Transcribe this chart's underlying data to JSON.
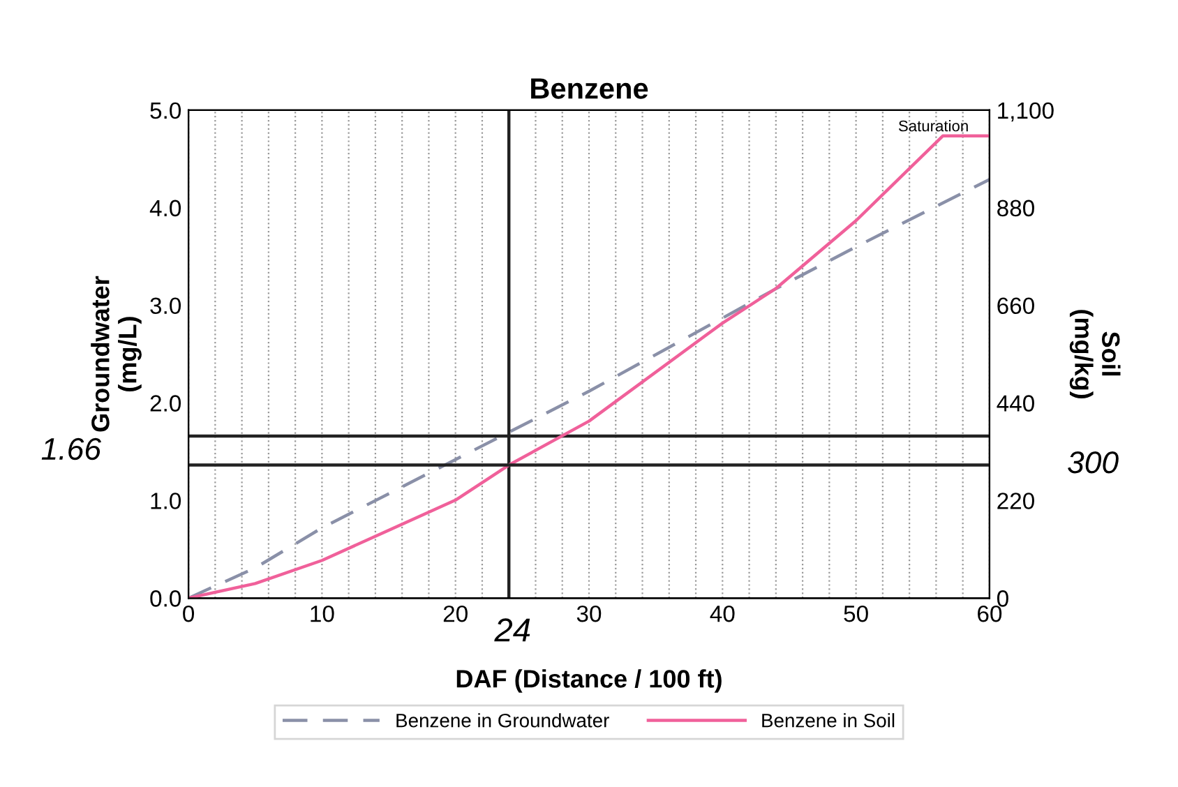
{
  "chart_data": {
    "type": "line",
    "title": "Benzene",
    "xlabel": "DAF (Distance / 100 ft)",
    "ylabel": "Groundwater\n(mg/L)",
    "y2label": "Soil\n(mg/kg)",
    "xlim": [
      0,
      60
    ],
    "xticks": [
      0,
      {
        "value": 2,
        "label": null
      },
      {
        "value": 4,
        "label": null
      },
      {
        "value": 6,
        "label": null
      },
      {
        "value": 8,
        "label": null
      },
      10,
      {
        "value": 12,
        "label": null
      },
      {
        "value": 14,
        "label": null
      },
      {
        "value": 16,
        "label": null
      },
      {
        "value": 18,
        "label": null
      },
      20,
      {
        "value": 22,
        "label": null
      },
      {
        "value": 24,
        "label": null
      },
      {
        "value": 26,
        "label": null
      },
      {
        "value": 28,
        "label": null
      },
      30,
      {
        "value": 32,
        "label": null
      },
      {
        "value": 34,
        "label": null
      },
      {
        "value": 36,
        "label": null
      },
      {
        "value": 38,
        "label": null
      },
      40,
      {
        "value": 42,
        "label": null
      },
      {
        "value": 44,
        "label": null
      },
      {
        "value": 46,
        "label": null
      },
      {
        "value": 48,
        "label": null
      },
      50,
      {
        "value": 52,
        "label": null
      },
      {
        "value": 54,
        "label": null
      },
      {
        "value": 56,
        "label": null
      },
      {
        "value": 58,
        "label": null
      },
      60
    ],
    "ylim": [
      0,
      5
    ],
    "yticks": [
      {
        "value": 0,
        "label": "0.0"
      },
      {
        "value": 1,
        "label": "1.0"
      },
      {
        "value": 2,
        "label": "2.0"
      },
      {
        "value": 3,
        "label": "3.0"
      },
      {
        "value": 4,
        "label": "4.0"
      },
      {
        "value": 5,
        "label": "5.0"
      }
    ],
    "y2lim": [
      0,
      1100
    ],
    "y2ticks": [
      0,
      220,
      440,
      660,
      880,
      {
        "value": 1100,
        "label": "1,100"
      }
    ],
    "grid": "x",
    "legend": "bottom",
    "series": [
      {
        "name": "Benzene in Groundwater",
        "color": "#8a90a8",
        "line_style": "dashed",
        "x": [
          0,
          5,
          10,
          20,
          24,
          30,
          40,
          44,
          50,
          60
        ],
        "values": [
          0,
          0.31,
          0.72,
          1.42,
          1.7,
          2.12,
          2.87,
          3.17,
          3.6,
          4.29
        ]
      },
      {
        "name": "Benzene in Soil",
        "color": "#f0609a",
        "line_style": "solid",
        "axis": "y2",
        "x": [
          0,
          5,
          10,
          20,
          24,
          30,
          40,
          44,
          50,
          56.5,
          60
        ],
        "values": [
          0,
          33,
          85,
          221,
          300,
          399,
          620,
          698,
          851,
          1042,
          1042
        ]
      }
    ],
    "ref_lines": [
      {
        "axis": "x",
        "value": 24,
        "label": "24",
        "color": "#222222"
      },
      {
        "axis": "y",
        "value": 1.66,
        "label": "1.66",
        "color": "#222222"
      },
      {
        "axis": "y2",
        "value": 300,
        "label": "300",
        "color": "#222222"
      }
    ],
    "annotations": [
      "Saturation"
    ]
  }
}
